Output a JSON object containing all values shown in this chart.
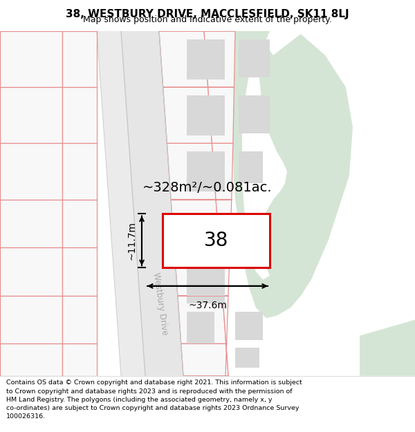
{
  "title": "38, WESTBURY DRIVE, MACCLESFIELD, SK11 8LJ",
  "subtitle": "Map shows position and indicative extent of the property.",
  "footer": "Contains OS data © Crown copyright and database right 2021. This information is subject\nto Crown copyright and database rights 2023 and is reproduced with the permission of\nHM Land Registry. The polygons (including the associated geometry, namely x, y\nco-ordinates) are subject to Crown copyright and database rights 2023 Ordnance Survey\n100026316.",
  "area_label": "~328m²/~0.081ac.",
  "width_label": "~37.6m",
  "height_label": "~11.7m",
  "number_label": "38",
  "road_label": "Westbury Drive",
  "bg_color": "#ffffff",
  "map_bg": "#ffffff",
  "green_color": "#d5e5d5",
  "plot_line_color": "#dd0000",
  "boundary_color": "#e89090",
  "building_color": "#d8d8d8",
  "road_fill": "#e6e6e6",
  "road_edge": "#c8c8c8",
  "title_size": 11,
  "subtitle_size": 9,
  "footer_size": 6.8,
  "area_size": 14,
  "label_size": 10,
  "number_size": 20
}
